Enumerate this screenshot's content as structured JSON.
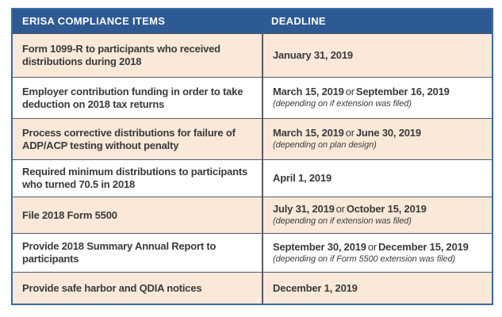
{
  "colors": {
    "header_bg": "#2d5a92",
    "header_text": "#ffffff",
    "row_alt_bg": "#fae9d9",
    "row_bg": "#ffffff",
    "outer_border": "#3c6da1",
    "divider": "#565b68",
    "body_text": "#3a3a3a"
  },
  "table": {
    "columns": [
      {
        "label": "ERISA COMPLIANCE ITEMS"
      },
      {
        "label": "DEADLINE"
      }
    ],
    "rows": [
      {
        "item": "Form 1099-R to participants who received distributions during 2018",
        "deadline_primary": "January 31, 2019",
        "deadline_or": "",
        "deadline_secondary": "",
        "note": ""
      },
      {
        "item": "Employer contribution funding in order to take deduction on 2018 tax returns",
        "deadline_primary": "March 15, 2019",
        "deadline_or": "or",
        "deadline_secondary": "September 16, 2019",
        "note": "(depending on if extension was filed)"
      },
      {
        "item": "Process corrective distributions for failure of ADP/ACP testing without penalty",
        "deadline_primary": "March 15, 2019",
        "deadline_or": "or",
        "deadline_secondary": "June 30, 2019",
        "note": "(depending on plan design)"
      },
      {
        "item": "Required minimum distributions to participants who turned 70.5 in 2018",
        "deadline_primary": "April 1, 2019",
        "deadline_or": "",
        "deadline_secondary": "",
        "note": ""
      },
      {
        "item": "File 2018 Form 5500",
        "deadline_primary": "July 31, 2019",
        "deadline_or": "or",
        "deadline_secondary": "October 15, 2019",
        "note": "(depending on if extension was filed)"
      },
      {
        "item": "Provide 2018 Summary Annual Report to participants",
        "deadline_primary": "September 30, 2019",
        "deadline_or": "or",
        "deadline_secondary": "December 15, 2019",
        "note": "(depending on if Form 5500 extension was filed)"
      },
      {
        "item": "Provide safe harbor and QDIA notices",
        "deadline_primary": "December 1, 2019",
        "deadline_or": "",
        "deadline_secondary": "",
        "note": ""
      }
    ]
  }
}
